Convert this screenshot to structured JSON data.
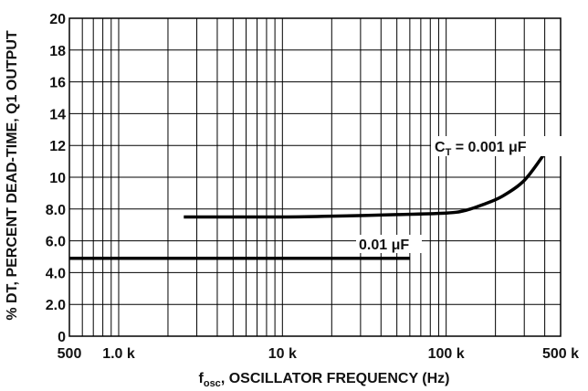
{
  "chart_data": {
    "type": "line",
    "xscale": "log",
    "xlim": [
      500,
      500000
    ],
    "ylim": [
      0,
      20
    ],
    "grid": true,
    "xlabel_main": "f",
    "xlabel_sub": "osc",
    "xlabel_rest": ", OSCILLATOR FREQUENCY (Hz)",
    "ylabel": "% DT, PERCENT DEAD-TIME, Q1 OUTPUT",
    "x_tick_labels": [
      {
        "value": 500,
        "label": "500"
      },
      {
        "value": 1000,
        "label": "1.0 k"
      },
      {
        "value": 10000,
        "label": "10 k"
      },
      {
        "value": 100000,
        "label": "100 k"
      },
      {
        "value": 500000,
        "label": "500 k"
      }
    ],
    "y_tick_labels": [
      {
        "value": 0,
        "label": "0"
      },
      {
        "value": 2,
        "label": "2.0"
      },
      {
        "value": 4,
        "label": "4.0"
      },
      {
        "value": 6,
        "label": "6.0"
      },
      {
        "value": 8,
        "label": "8.0"
      },
      {
        "value": 10,
        "label": "10"
      },
      {
        "value": 12,
        "label": "12"
      },
      {
        "value": 14,
        "label": "14"
      },
      {
        "value": 16,
        "label": "16"
      },
      {
        "value": 18,
        "label": "18"
      },
      {
        "value": 20,
        "label": "20"
      }
    ],
    "series": [
      {
        "label_main": "C",
        "label_sub": "T",
        "label_rest": " = 0.001 μF",
        "x": [
          2500,
          5000,
          10000,
          20000,
          50000,
          100000,
          130000,
          170000,
          220000,
          300000,
          400000
        ],
        "y": [
          7.5,
          7.5,
          7.5,
          7.55,
          7.65,
          7.75,
          7.9,
          8.3,
          8.8,
          9.8,
          11.5
        ]
      },
      {
        "label_main": "0.01 μF",
        "x": [
          500,
          60000
        ],
        "y": [
          4.9,
          4.9
        ]
      }
    ]
  }
}
